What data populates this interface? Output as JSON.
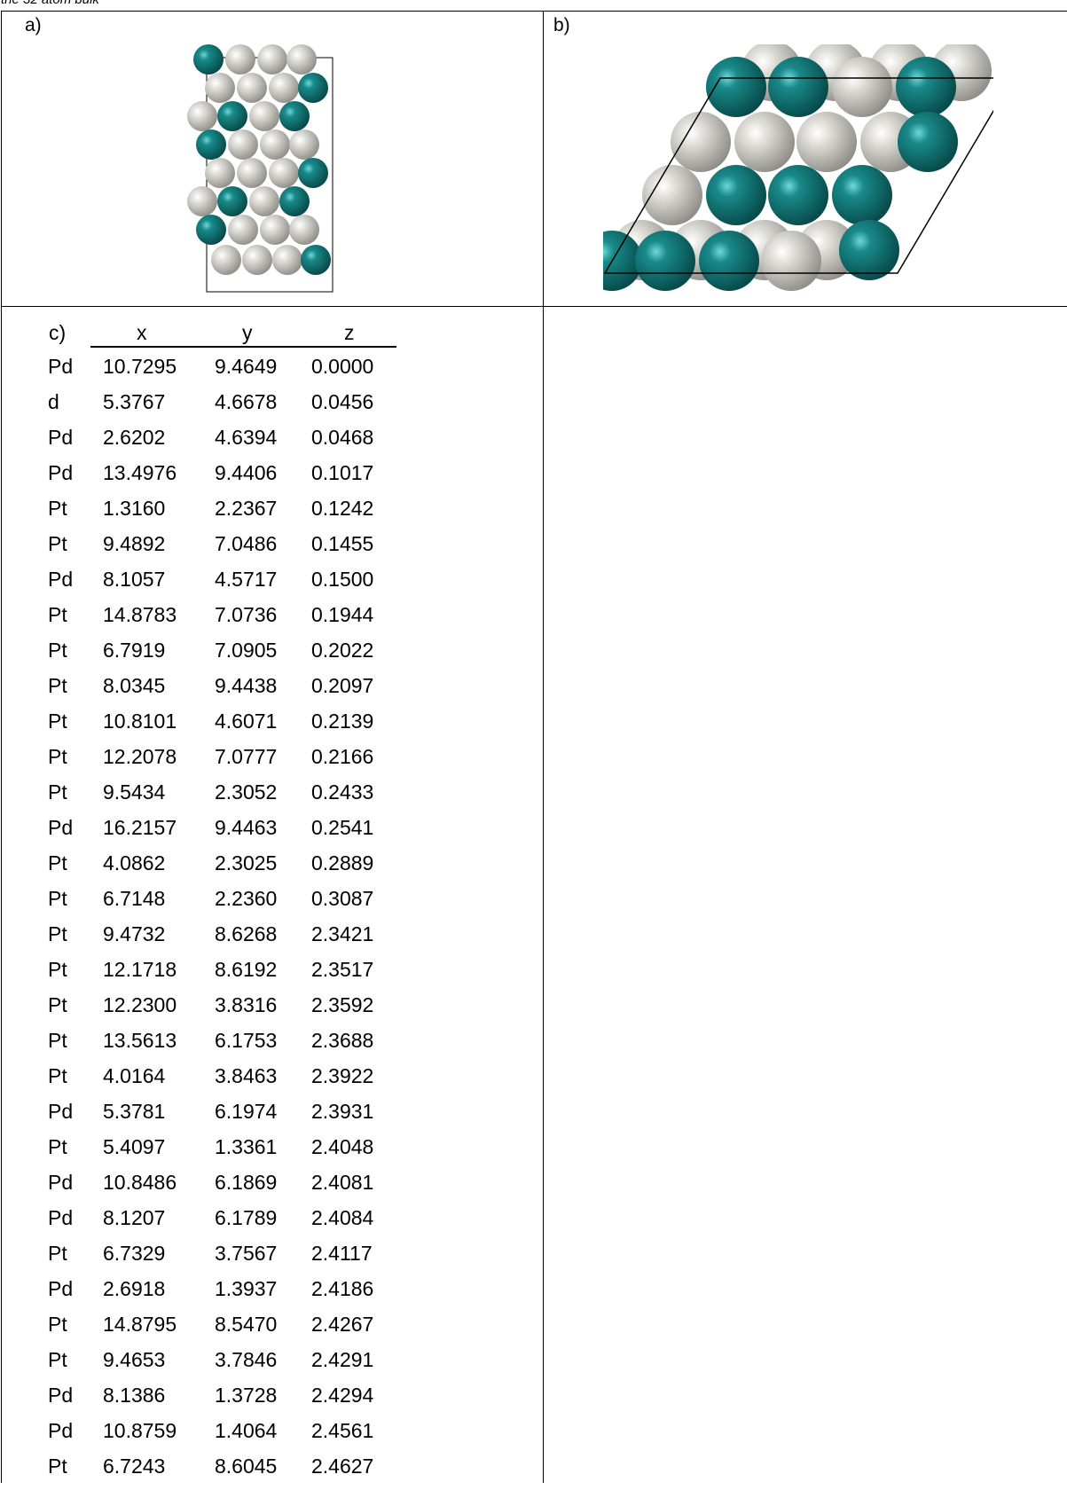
{
  "caption": "the 32 atom bulk",
  "panels": {
    "a": "a)",
    "b": "b)",
    "c": "c)"
  },
  "table": {
    "headers": [
      "x",
      "y",
      "z"
    ],
    "rows": [
      [
        "Pd",
        "10.7295",
        "9.4649",
        "0.0000"
      ],
      [
        "d",
        "5.3767",
        "4.6678",
        "0.0456"
      ],
      [
        "Pd",
        "2.6202",
        "4.6394",
        "0.0468"
      ],
      [
        "Pd",
        "13.4976",
        "9.4406",
        "0.1017"
      ],
      [
        "Pt",
        "1.3160",
        "2.2367",
        "0.1242"
      ],
      [
        "Pt",
        "9.4892",
        "7.0486",
        "0.1455"
      ],
      [
        "Pd",
        "8.1057",
        "4.5717",
        "0.1500"
      ],
      [
        "Pt",
        "14.8783",
        "7.0736",
        "0.1944"
      ],
      [
        "Pt",
        "6.7919",
        "7.0905",
        "0.2022"
      ],
      [
        "Pt",
        "8.0345",
        "9.4438",
        "0.2097"
      ],
      [
        "Pt",
        "10.8101",
        "4.6071",
        "0.2139"
      ],
      [
        "Pt",
        "12.2078",
        "7.0777",
        "0.2166"
      ],
      [
        "Pt",
        "9.5434",
        "2.3052",
        "0.2433"
      ],
      [
        "Pd",
        "16.2157",
        "9.4463",
        "0.2541"
      ],
      [
        "Pt",
        "4.0862",
        "2.3025",
        "0.2889"
      ],
      [
        "Pt",
        "6.7148",
        "2.2360",
        "0.3087"
      ],
      [
        "Pt",
        "9.4732",
        "8.6268",
        "2.3421"
      ],
      [
        "Pt",
        "12.1718",
        "8.6192",
        "2.3517"
      ],
      [
        "Pt",
        "12.2300",
        "3.8316",
        "2.3592"
      ],
      [
        "Pt",
        "13.5613",
        "6.1753",
        "2.3688"
      ],
      [
        "Pt",
        "4.0164",
        "3.8463",
        "2.3922"
      ],
      [
        "Pd",
        "5.3781",
        "6.1974",
        "2.3931"
      ],
      [
        "Pt",
        "5.4097",
        "1.3361",
        "2.4048"
      ],
      [
        "Pd",
        "10.8486",
        "6.1869",
        "2.4081"
      ],
      [
        "Pd",
        "8.1207",
        "6.1789",
        "2.4084"
      ],
      [
        "Pt",
        "6.7329",
        "3.7567",
        "2.4117"
      ],
      [
        "Pd",
        "2.6918",
        "1.3937",
        "2.4186"
      ],
      [
        "Pt",
        "14.8795",
        "8.5470",
        "2.4267"
      ],
      [
        "Pt",
        "9.4653",
        "3.7846",
        "2.4291"
      ],
      [
        "Pd",
        "8.1386",
        "1.3728",
        "2.4294"
      ],
      [
        "Pd",
        "10.8759",
        "1.4064",
        "2.4561"
      ],
      [
        "Pt",
        "6.7243",
        "8.6045",
        "2.4627"
      ]
    ]
  },
  "colors": {
    "pd": "#0f7f7f",
    "pt": "#d2d0cb",
    "line": "#000000"
  }
}
